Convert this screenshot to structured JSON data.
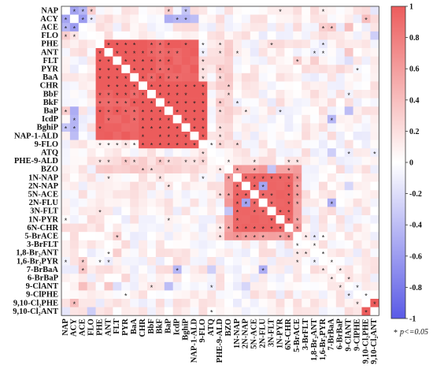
{
  "chart_data": {
    "type": "heatmap",
    "labels": [
      "NAP",
      "ACY",
      "ACE",
      "FLO",
      "PHE",
      "ANT",
      "FLT",
      "PYR",
      "BaA",
      "CHR",
      "BbF",
      "BkF",
      "BaP",
      "IcdP",
      "BghiP",
      "NAP-1-ALD",
      "9-FLO",
      "ATQ",
      "PHE-9-ALD",
      "BZO",
      "1N-NAP",
      "2N-NAP",
      "5N-ACE",
      "2N-FLU",
      "3N-FLT",
      "1N-PYR",
      "6N-CHR",
      "5-BrACE",
      "3-BrFLT",
      "1,8-Br₂ANT",
      "1,6-Br₂PYR",
      "7-BrBaA",
      "6-BrBaP",
      "9-ClANT",
      "9-ClPHE",
      "9,10-Cl₂PHE",
      "9,10-Cl₂ANT"
    ],
    "colorbar": {
      "min": -1,
      "max": 1,
      "ticks": [
        "1",
        "0.8",
        "0.6",
        "0.4",
        "0.2",
        "0",
        "-0.2",
        "-0.4",
        "-0.6",
        "-0.8",
        "-1"
      ],
      "low_color": "#5a5ae6",
      "mid_color": "#ffffff",
      "high_color": "#ec5c5c"
    },
    "significance_symbol": "*",
    "significance_note": "p<=0.05",
    "blocks": [
      {
        "rows": [
          4,
          15
        ],
        "cols": [
          4,
          15
        ],
        "value": 0.62
      },
      {
        "rows": [
          4,
          9
        ],
        "cols": [
          4,
          9
        ],
        "value": 0.72
      },
      {
        "rows": [
          9,
          16
        ],
        "cols": [
          9,
          16
        ],
        "value": 0.7
      },
      {
        "rows": [
          19,
          27
        ],
        "cols": [
          19,
          27
        ],
        "value": 0.4
      },
      {
        "rows": [
          20,
          26
        ],
        "cols": [
          20,
          26
        ],
        "value": 0.48
      },
      {
        "rows": [
          4,
          16
        ],
        "cols": [
          18,
          19
        ],
        "value": 0.25
      },
      {
        "rows": [
          35,
          36
        ],
        "cols": [
          35,
          36
        ],
        "value": 0.85
      }
    ],
    "cells": [
      [
        0,
        1,
        -0.55
      ],
      [
        0,
        2,
        -0.45
      ],
      [
        1,
        2,
        -0.6
      ],
      [
        0,
        3,
        0.3
      ],
      [
        0,
        12,
        -0.25
      ],
      [
        0,
        14,
        -0.35
      ],
      [
        1,
        13,
        -0.4
      ],
      [
        1,
        14,
        -0.45
      ],
      [
        1,
        15,
        -0.4
      ],
      [
        12,
        1,
        -0.5
      ],
      [
        13,
        1,
        -0.45
      ],
      [
        12,
        0,
        0.3
      ],
      [
        23,
        21,
        -0.55
      ],
      [
        23,
        31,
        -0.6
      ],
      [
        31,
        23,
        -0.5
      ],
      [
        33,
        12,
        -0.4
      ],
      [
        13,
        31,
        -0.45
      ],
      [
        19,
        24,
        -0.35
      ],
      [
        2,
        30,
        0.3
      ],
      [
        2,
        31,
        0.35
      ],
      [
        1,
        35,
        0.4
      ],
      [
        5,
        33,
        0.35
      ],
      [
        6,
        29,
        0.3
      ],
      [
        7,
        32,
        0.25
      ],
      [
        33,
        2,
        0.4
      ],
      [
        36,
        0,
        -0.15
      ],
      [
        3,
        36,
        -0.3
      ],
      [
        6,
        33,
        -0.2
      ],
      [
        27,
        6,
        0.3
      ],
      [
        17,
        31,
        -0.3
      ],
      [
        21,
        33,
        -0.25
      ]
    ],
    "significant": [
      [
        0,
        1
      ],
      [
        0,
        2
      ],
      [
        1,
        2
      ],
      [
        0,
        3
      ],
      [
        1,
        3
      ],
      [
        0,
        12
      ],
      [
        1,
        13
      ],
      [
        1,
        14
      ],
      [
        0,
        14
      ],
      [
        0,
        25
      ],
      [
        0,
        30
      ],
      [
        1,
        35
      ],
      [
        2,
        30
      ],
      [
        2,
        31
      ],
      [
        4,
        5
      ],
      [
        4,
        6
      ],
      [
        4,
        7
      ],
      [
        4,
        8
      ],
      [
        4,
        10
      ],
      [
        4,
        11
      ],
      [
        4,
        12
      ],
      [
        4,
        14
      ],
      [
        4,
        16
      ],
      [
        4,
        18
      ],
      [
        4,
        24
      ],
      [
        4,
        30
      ],
      [
        5,
        6
      ],
      [
        5,
        7
      ],
      [
        5,
        8
      ],
      [
        5,
        9
      ],
      [
        5,
        10
      ],
      [
        5,
        11
      ],
      [
        5,
        12
      ],
      [
        5,
        13
      ],
      [
        5,
        16
      ],
      [
        5,
        18
      ],
      [
        5,
        20
      ],
      [
        5,
        30
      ],
      [
        6,
        7
      ],
      [
        6,
        8
      ],
      [
        6,
        9
      ],
      [
        6,
        10
      ],
      [
        6,
        11
      ],
      [
        6,
        12
      ],
      [
        6,
        27
      ],
      [
        7,
        8
      ],
      [
        7,
        9
      ],
      [
        7,
        10
      ],
      [
        7,
        11
      ],
      [
        7,
        12
      ],
      [
        7,
        16
      ],
      [
        7,
        18
      ],
      [
        8,
        9
      ],
      [
        8,
        10
      ],
      [
        8,
        11
      ],
      [
        8,
        12
      ],
      [
        8,
        13
      ],
      [
        8,
        16
      ],
      [
        9,
        10
      ],
      [
        9,
        11
      ],
      [
        9,
        12
      ],
      [
        9,
        13
      ],
      [
        9,
        14
      ],
      [
        9,
        15
      ],
      [
        9,
        16
      ],
      [
        10,
        11
      ],
      [
        10,
        12
      ],
      [
        10,
        13
      ],
      [
        10,
        14
      ],
      [
        10,
        16
      ],
      [
        10,
        19
      ],
      [
        10,
        33
      ],
      [
        11,
        12
      ],
      [
        11,
        13
      ],
      [
        11,
        14
      ],
      [
        11,
        15
      ],
      [
        11,
        16
      ],
      [
        11,
        18
      ],
      [
        12,
        13
      ],
      [
        12,
        14
      ],
      [
        12,
        15
      ],
      [
        12,
        16
      ],
      [
        12,
        18
      ],
      [
        12,
        25
      ],
      [
        13,
        14
      ],
      [
        13,
        15
      ],
      [
        13,
        16
      ],
      [
        13,
        31
      ],
      [
        14,
        15
      ],
      [
        14,
        16
      ],
      [
        14,
        18
      ],
      [
        15,
        16
      ],
      [
        15,
        18
      ],
      [
        16,
        17
      ],
      [
        16,
        18
      ],
      [
        16,
        20
      ],
      [
        17,
        33
      ],
      [
        17,
        36
      ],
      [
        18,
        19
      ],
      [
        18,
        22
      ],
      [
        18,
        26
      ],
      [
        18,
        27
      ],
      [
        19,
        20
      ],
      [
        19,
        22
      ],
      [
        19,
        26
      ],
      [
        20,
        21
      ],
      [
        20,
        22
      ],
      [
        20,
        23
      ],
      [
        20,
        24
      ],
      [
        20,
        25
      ],
      [
        20,
        26
      ],
      [
        20,
        27
      ],
      [
        21,
        22
      ],
      [
        21,
        23
      ],
      [
        21,
        26
      ],
      [
        21,
        27
      ],
      [
        22,
        23
      ],
      [
        22,
        24
      ],
      [
        22,
        26
      ],
      [
        22,
        27
      ],
      [
        23,
        24
      ],
      [
        23,
        26
      ],
      [
        23,
        27
      ],
      [
        23,
        31
      ],
      [
        24,
        25
      ],
      [
        24,
        26
      ],
      [
        25,
        26
      ],
      [
        25,
        27
      ],
      [
        26,
        27
      ],
      [
        27,
        28
      ],
      [
        27,
        29
      ],
      [
        27,
        30
      ],
      [
        28,
        29
      ],
      [
        29,
        30
      ],
      [
        30,
        31
      ],
      [
        31,
        32
      ],
      [
        32,
        33
      ],
      [
        33,
        34
      ],
      [
        34,
        35
      ],
      [
        35,
        36
      ],
      [
        5,
        29
      ],
      [
        7,
        34
      ],
      [
        11,
        20
      ],
      [
        12,
        21
      ],
      [
        9,
        19
      ],
      [
        6,
        16
      ],
      [
        8,
        18
      ]
    ]
  }
}
